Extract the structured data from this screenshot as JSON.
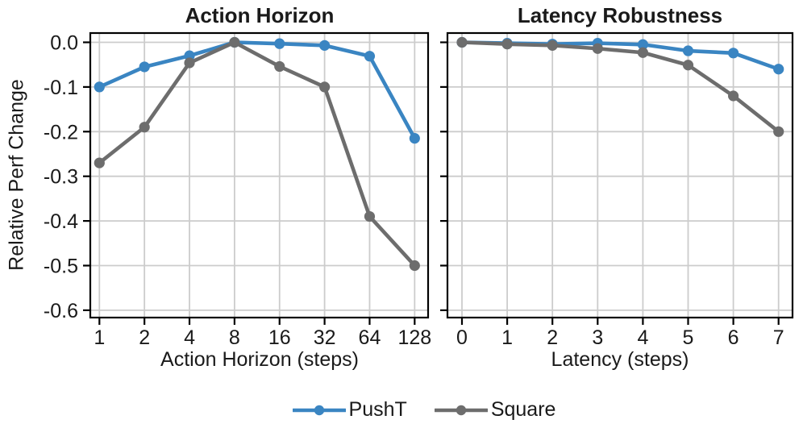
{
  "figure": {
    "y_axis_label": "Relative Perf Change",
    "background": "#ffffff",
    "grid_color": "#cccccc",
    "axis_color": "#000000",
    "legend": {
      "items": [
        {
          "label": "PushT",
          "color": "#3a85c2"
        },
        {
          "label": "Square",
          "color": "#6d6d6d"
        }
      ]
    }
  },
  "chart_data": [
    {
      "type": "line",
      "title": "Action Horizon",
      "xlabel": "Action Horizon (steps)",
      "ylabel": "Relative Perf Change",
      "categories": [
        "1",
        "2",
        "4",
        "8",
        "16",
        "32",
        "64",
        "128"
      ],
      "ytick_values": [
        0.0,
        -0.1,
        -0.2,
        -0.3,
        -0.4,
        -0.5,
        -0.6
      ],
      "ytick_labels": [
        "0.0",
        "-0.1",
        "-0.2",
        "-0.3",
        "-0.4",
        "-0.5",
        "-0.6"
      ],
      "show_ytick_labels": true,
      "ylim": [
        -0.616,
        0.021
      ],
      "grid": true,
      "legend_position": "bottom-center",
      "series": [
        {
          "name": "PushT",
          "color": "#3a85c2",
          "values": [
            -0.1,
            -0.055,
            -0.03,
            0.0,
            -0.003,
            -0.007,
            -0.031,
            -0.215
          ]
        },
        {
          "name": "Square",
          "color": "#6d6d6d",
          "values": [
            -0.27,
            -0.19,
            -0.046,
            0.0,
            -0.054,
            -0.1,
            -0.39,
            -0.5
          ]
        }
      ]
    },
    {
      "type": "line",
      "title": "Latency Robustness",
      "xlabel": "Latency (steps)",
      "ylabel": "Relative Perf Change",
      "categories": [
        "0",
        "1",
        "2",
        "3",
        "4",
        "5",
        "6",
        "7"
      ],
      "ytick_values": [
        0.0,
        -0.1,
        -0.2,
        -0.3,
        -0.4,
        -0.5,
        -0.6
      ],
      "ytick_labels": [],
      "show_ytick_labels": false,
      "ylim": [
        -0.616,
        0.021
      ],
      "grid": true,
      "legend_position": "bottom-center",
      "series": [
        {
          "name": "PushT",
          "color": "#3a85c2",
          "values": [
            0.0,
            -0.002,
            -0.004,
            -0.002,
            -0.005,
            -0.019,
            -0.024,
            -0.06
          ]
        },
        {
          "name": "Square",
          "color": "#6d6d6d",
          "values": [
            0.0,
            -0.004,
            -0.007,
            -0.014,
            -0.023,
            -0.051,
            -0.12,
            -0.2
          ]
        }
      ]
    }
  ]
}
